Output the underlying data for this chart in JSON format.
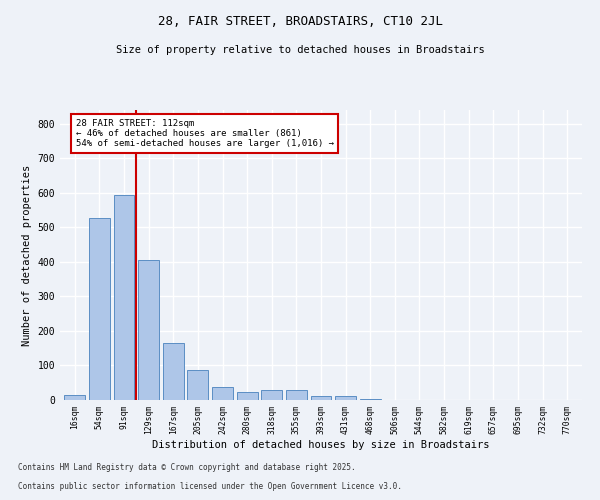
{
  "title1": "28, FAIR STREET, BROADSTAIRS, CT10 2JL",
  "title2": "Size of property relative to detached houses in Broadstairs",
  "xlabel": "Distribution of detached houses by size in Broadstairs",
  "ylabel": "Number of detached properties",
  "categories": [
    "16sqm",
    "54sqm",
    "91sqm",
    "129sqm",
    "167sqm",
    "205sqm",
    "242sqm",
    "280sqm",
    "318sqm",
    "355sqm",
    "393sqm",
    "431sqm",
    "468sqm",
    "506sqm",
    "544sqm",
    "582sqm",
    "619sqm",
    "657sqm",
    "695sqm",
    "732sqm",
    "770sqm"
  ],
  "values": [
    15,
    528,
    595,
    405,
    165,
    88,
    37,
    22,
    28,
    28,
    13,
    13,
    4,
    0,
    0,
    0,
    0,
    0,
    0,
    0,
    0
  ],
  "bar_color": "#aec6e8",
  "bar_edge_color": "#5b8ec4",
  "vline_x": 2.5,
  "vline_color": "#cc0000",
  "annotation_text": "28 FAIR STREET: 112sqm\n← 46% of detached houses are smaller (861)\n54% of semi-detached houses are larger (1,016) →",
  "annotation_box_color": "#ffffff",
  "annotation_box_edge": "#cc0000",
  "ylim": [
    0,
    840
  ],
  "yticks": [
    0,
    100,
    200,
    300,
    400,
    500,
    600,
    700,
    800
  ],
  "footer1": "Contains HM Land Registry data © Crown copyright and database right 2025.",
  "footer2": "Contains public sector information licensed under the Open Government Licence v3.0.",
  "bg_color": "#eef2f8",
  "grid_color": "#ffffff",
  "font_family": "DejaVu Sans Mono"
}
